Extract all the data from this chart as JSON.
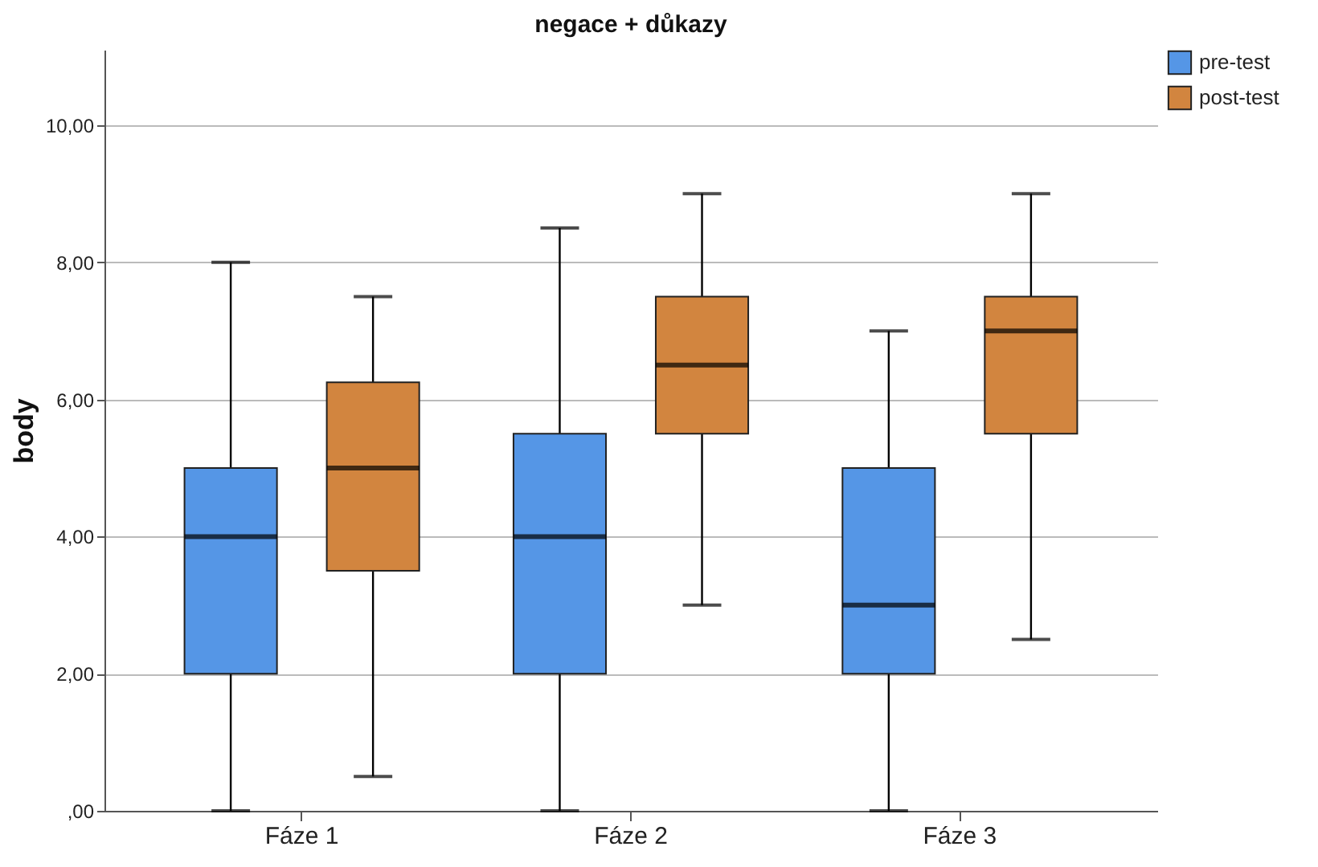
{
  "chart_data": {
    "type": "box",
    "title": "negace + důkazy",
    "ylabel": "body",
    "categories": [
      "Fáze 1",
      "Fáze 2",
      "Fáze 3"
    ],
    "ylim": [
      0,
      11.1
    ],
    "yticks": [
      {
        "value": 0,
        "label": ",00"
      },
      {
        "value": 2,
        "label": "2,00"
      },
      {
        "value": 4,
        "label": "4,00"
      },
      {
        "value": 6,
        "label": "6,00"
      },
      {
        "value": 8,
        "label": "8,00"
      },
      {
        "value": 10,
        "label": "10,00"
      }
    ],
    "grid": "y",
    "legend": "top right",
    "series": [
      {
        "name": "pre-test",
        "color": "#5596e6",
        "boxes": [
          {
            "low": 0,
            "q1": 2,
            "median": 4,
            "q3": 5,
            "high": 8
          },
          {
            "low": 0,
            "q1": 2,
            "median": 4,
            "q3": 5.5,
            "high": 8.5
          },
          {
            "low": 0,
            "q1": 2,
            "median": 3,
            "q3": 5,
            "high": 7
          }
        ]
      },
      {
        "name": "post-test",
        "color": "#d2853f",
        "boxes": [
          {
            "low": 0.5,
            "q1": 3.5,
            "median": 5,
            "q3": 6.25,
            "high": 7.5
          },
          {
            "low": 3,
            "q1": 5.5,
            "median": 6.5,
            "q3": 7.5,
            "high": 9
          },
          {
            "low": 2.5,
            "q1": 5.5,
            "median": 7,
            "q3": 7.5,
            "high": 9
          }
        ]
      }
    ]
  }
}
